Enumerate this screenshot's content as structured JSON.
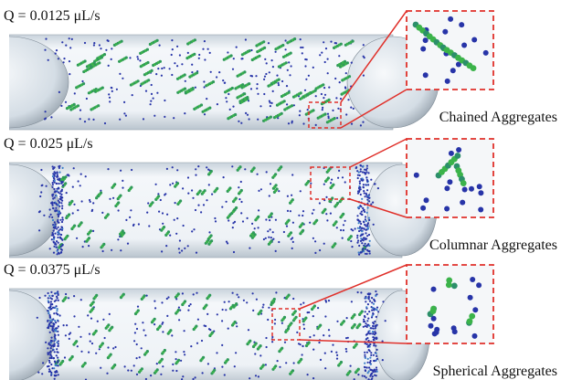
{
  "panels": [
    {
      "label": "Q = 0.0125 μL/s",
      "caption": "Chained Aggregates"
    },
    {
      "label": "Q = 0.025 μL/s",
      "caption": "Columnar Aggregates"
    },
    {
      "label": "Q = 0.0375 μL/s",
      "caption": "Spherical Aggregates"
    }
  ]
}
